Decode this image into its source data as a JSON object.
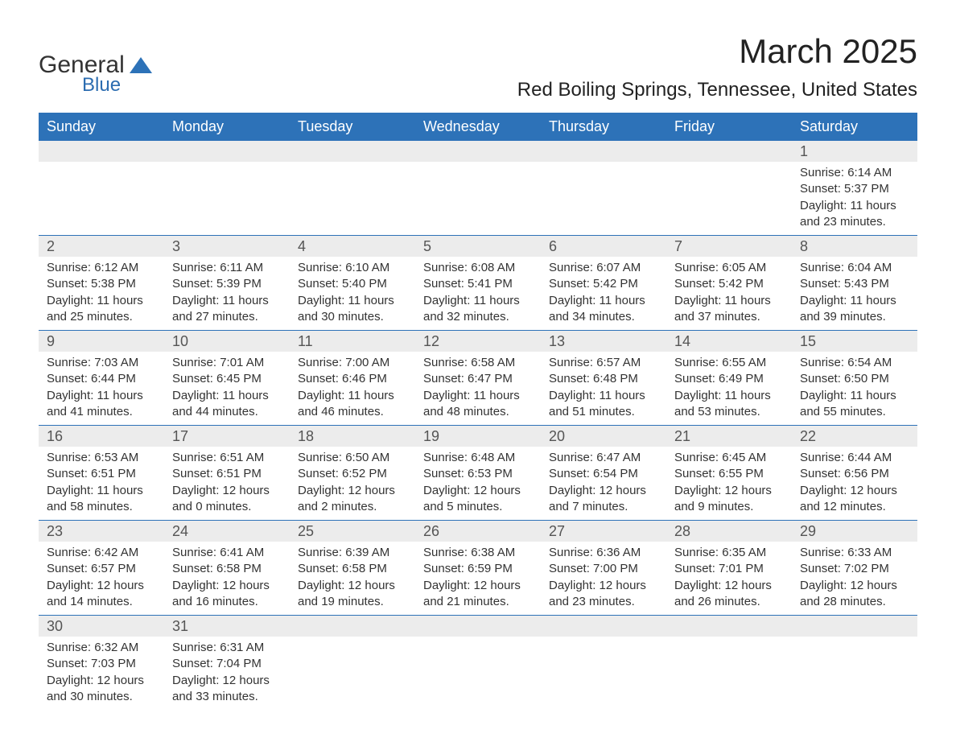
{
  "brand": {
    "line1": "General",
    "line2": "Blue",
    "icon_color": "#2d72b8"
  },
  "title": "March 2025",
  "location": "Red Boiling Springs, Tennessee, United States",
  "header_bg": "#2d72b8",
  "band_bg": "#ececec",
  "dow": [
    "Sunday",
    "Monday",
    "Tuesday",
    "Wednesday",
    "Thursday",
    "Friday",
    "Saturday"
  ],
  "weeks": [
    [
      null,
      null,
      null,
      null,
      null,
      null,
      {
        "n": "1",
        "sr": "6:14 AM",
        "ss": "5:37 PM",
        "dh": "11",
        "dm": "23"
      }
    ],
    [
      {
        "n": "2",
        "sr": "6:12 AM",
        "ss": "5:38 PM",
        "dh": "11",
        "dm": "25"
      },
      {
        "n": "3",
        "sr": "6:11 AM",
        "ss": "5:39 PM",
        "dh": "11",
        "dm": "27"
      },
      {
        "n": "4",
        "sr": "6:10 AM",
        "ss": "5:40 PM",
        "dh": "11",
        "dm": "30"
      },
      {
        "n": "5",
        "sr": "6:08 AM",
        "ss": "5:41 PM",
        "dh": "11",
        "dm": "32"
      },
      {
        "n": "6",
        "sr": "6:07 AM",
        "ss": "5:42 PM",
        "dh": "11",
        "dm": "34"
      },
      {
        "n": "7",
        "sr": "6:05 AM",
        "ss": "5:42 PM",
        "dh": "11",
        "dm": "37"
      },
      {
        "n": "8",
        "sr": "6:04 AM",
        "ss": "5:43 PM",
        "dh": "11",
        "dm": "39"
      }
    ],
    [
      {
        "n": "9",
        "sr": "7:03 AM",
        "ss": "6:44 PM",
        "dh": "11",
        "dm": "41"
      },
      {
        "n": "10",
        "sr": "7:01 AM",
        "ss": "6:45 PM",
        "dh": "11",
        "dm": "44"
      },
      {
        "n": "11",
        "sr": "7:00 AM",
        "ss": "6:46 PM",
        "dh": "11",
        "dm": "46"
      },
      {
        "n": "12",
        "sr": "6:58 AM",
        "ss": "6:47 PM",
        "dh": "11",
        "dm": "48"
      },
      {
        "n": "13",
        "sr": "6:57 AM",
        "ss": "6:48 PM",
        "dh": "11",
        "dm": "51"
      },
      {
        "n": "14",
        "sr": "6:55 AM",
        "ss": "6:49 PM",
        "dh": "11",
        "dm": "53"
      },
      {
        "n": "15",
        "sr": "6:54 AM",
        "ss": "6:50 PM",
        "dh": "11",
        "dm": "55"
      }
    ],
    [
      {
        "n": "16",
        "sr": "6:53 AM",
        "ss": "6:51 PM",
        "dh": "11",
        "dm": "58"
      },
      {
        "n": "17",
        "sr": "6:51 AM",
        "ss": "6:51 PM",
        "dh": "12",
        "dm": "0"
      },
      {
        "n": "18",
        "sr": "6:50 AM",
        "ss": "6:52 PM",
        "dh": "12",
        "dm": "2"
      },
      {
        "n": "19",
        "sr": "6:48 AM",
        "ss": "6:53 PM",
        "dh": "12",
        "dm": "5"
      },
      {
        "n": "20",
        "sr": "6:47 AM",
        "ss": "6:54 PM",
        "dh": "12",
        "dm": "7"
      },
      {
        "n": "21",
        "sr": "6:45 AM",
        "ss": "6:55 PM",
        "dh": "12",
        "dm": "9"
      },
      {
        "n": "22",
        "sr": "6:44 AM",
        "ss": "6:56 PM",
        "dh": "12",
        "dm": "12"
      }
    ],
    [
      {
        "n": "23",
        "sr": "6:42 AM",
        "ss": "6:57 PM",
        "dh": "12",
        "dm": "14"
      },
      {
        "n": "24",
        "sr": "6:41 AM",
        "ss": "6:58 PM",
        "dh": "12",
        "dm": "16"
      },
      {
        "n": "25",
        "sr": "6:39 AM",
        "ss": "6:58 PM",
        "dh": "12",
        "dm": "19"
      },
      {
        "n": "26",
        "sr": "6:38 AM",
        "ss": "6:59 PM",
        "dh": "12",
        "dm": "21"
      },
      {
        "n": "27",
        "sr": "6:36 AM",
        "ss": "7:00 PM",
        "dh": "12",
        "dm": "23"
      },
      {
        "n": "28",
        "sr": "6:35 AM",
        "ss": "7:01 PM",
        "dh": "12",
        "dm": "26"
      },
      {
        "n": "29",
        "sr": "6:33 AM",
        "ss": "7:02 PM",
        "dh": "12",
        "dm": "28"
      }
    ],
    [
      {
        "n": "30",
        "sr": "6:32 AM",
        "ss": "7:03 PM",
        "dh": "12",
        "dm": "30"
      },
      {
        "n": "31",
        "sr": "6:31 AM",
        "ss": "7:04 PM",
        "dh": "12",
        "dm": "33"
      },
      null,
      null,
      null,
      null,
      null
    ]
  ],
  "labels": {
    "sunrise": "Sunrise:",
    "sunset": "Sunset:",
    "daylight_pre": "Daylight:",
    "hours_word": "hours",
    "and_word": "and",
    "minutes_word": "minutes."
  }
}
